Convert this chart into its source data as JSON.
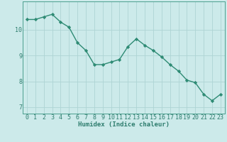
{
  "x": [
    0,
    1,
    2,
    3,
    4,
    5,
    6,
    7,
    8,
    9,
    10,
    11,
    12,
    13,
    14,
    15,
    16,
    17,
    18,
    19,
    20,
    21,
    22,
    23
  ],
  "y": [
    10.4,
    10.4,
    10.5,
    10.6,
    10.3,
    10.1,
    9.5,
    9.2,
    8.65,
    8.65,
    8.75,
    8.85,
    9.35,
    9.65,
    9.4,
    9.2,
    8.95,
    8.65,
    8.4,
    8.05,
    7.95,
    7.5,
    7.25,
    7.5
  ],
  "line_color": "#2e8b74",
  "marker": "D",
  "marker_size": 2.2,
  "bg_color": "#cceaea",
  "grid_color": "#aed4d4",
  "xlabel": "Humidex (Indice chaleur)",
  "xlim": [
    -0.5,
    23.5
  ],
  "ylim": [
    6.75,
    11.1
  ],
  "yticks": [
    7,
    8,
    9,
    10
  ],
  "xticks": [
    0,
    1,
    2,
    3,
    4,
    5,
    6,
    7,
    8,
    9,
    10,
    11,
    12,
    13,
    14,
    15,
    16,
    17,
    18,
    19,
    20,
    21,
    22,
    23
  ],
  "xlabel_fontsize": 6.5,
  "tick_fontsize": 6.0,
  "axis_color": "#2e7d6e",
  "line_width": 1.0,
  "spine_color": "#4a9e8e"
}
